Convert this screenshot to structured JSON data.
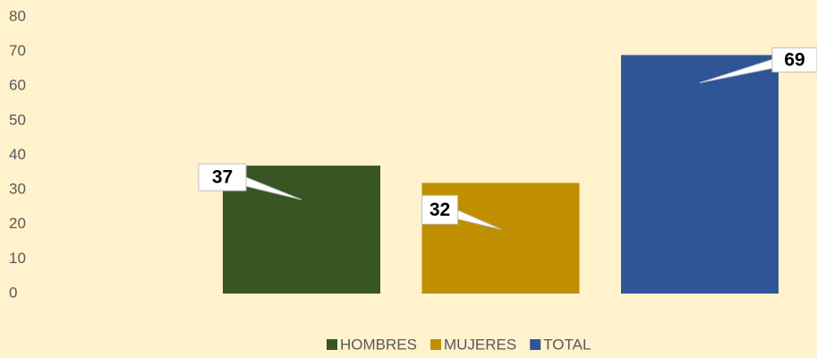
{
  "chart_data": {
    "type": "bar",
    "series": [
      {
        "name": "HOMBRES",
        "color": "#375623",
        "values": [
          37
        ]
      },
      {
        "name": "MUJERES",
        "color": "#bf8f00",
        "values": [
          32
        ]
      },
      {
        "name": "TOTAL",
        "color": "#2f5597",
        "values": [
          69
        ]
      }
    ],
    "ylim": [
      0,
      80
    ],
    "yticks": [
      0,
      10,
      20,
      30,
      40,
      50,
      60,
      70,
      80
    ],
    "grid": false,
    "legend": "bottom"
  }
}
